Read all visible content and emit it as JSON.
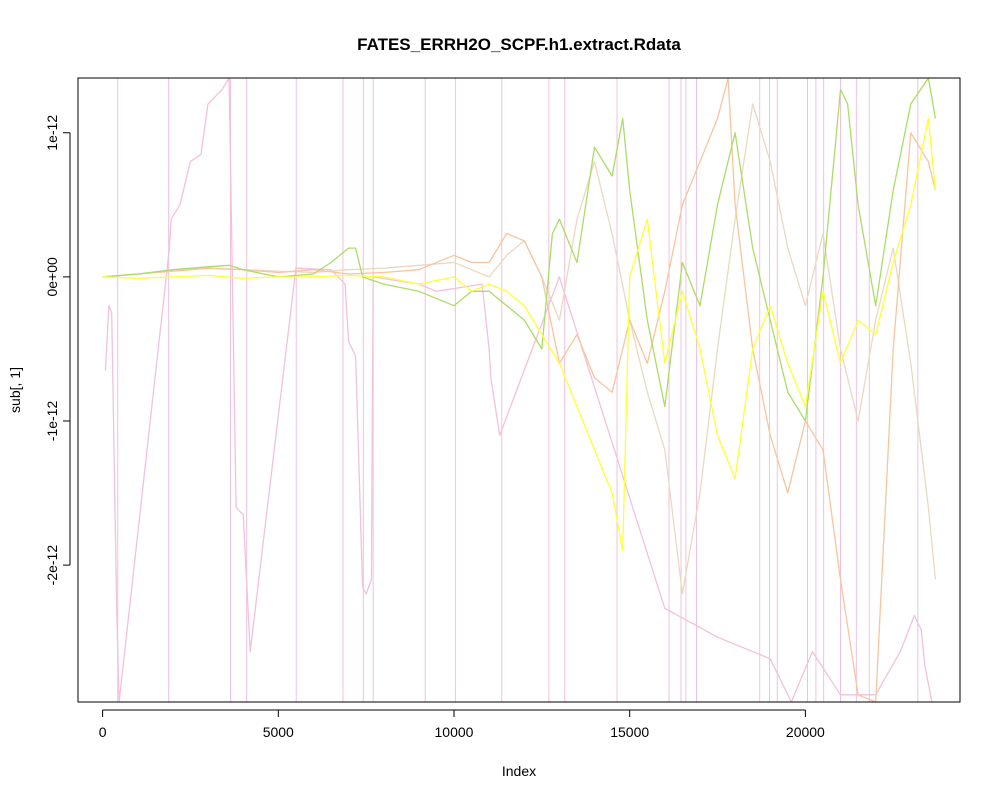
{
  "chart_data": {
    "type": "line",
    "title": "FATES_ERRH2O_SCPF.h1.extract.Rdata",
    "xlabel": "Index",
    "ylabel": "sub[, 1]",
    "xlim": [
      -700,
      24400
    ],
    "ylim": [
      -2.95e-12,
      1.38e-12
    ],
    "x_ticks": [
      0,
      5000,
      10000,
      15000,
      20000
    ],
    "x_tick_labels": [
      "0",
      "5000",
      "10000",
      "15000",
      "20000"
    ],
    "y_ticks": [
      1e-12,
      0,
      -1e-12,
      -2e-12
    ],
    "y_tick_labels": [
      "1e-12",
      "0e+00",
      "-1e-12",
      "-2e-12"
    ],
    "grid": false,
    "legend": "none",
    "series": [
      {
        "color": "#f2c1dc",
        "x": [
          80,
          180,
          260,
          400,
          470,
          1900,
          1950,
          2200,
          2500,
          2800,
          3000,
          3400,
          3600,
          3800,
          4000,
          4200,
          5500,
          6500,
          6900,
          7000,
          7200,
          7400,
          7500,
          7650,
          7700,
          9000,
          9500,
          10800,
          11000,
          11050,
          11300,
          13000,
          16000,
          17500,
          19000,
          19600,
          20200,
          21000,
          22000,
          22700,
          23100,
          23300,
          23400,
          23600
        ],
        "y": [
          -6.5e-13,
          -2e-13,
          -2.5e-13,
          -2.3e-12,
          -2.95e-12,
          2e-13,
          4e-13,
          5e-13,
          8e-13,
          8.5e-13,
          1.2e-12,
          1.3e-12,
          1.38e-12,
          -1.6e-12,
          -1.65e-12,
          -2.6e-12,
          6e-14,
          5e-14,
          -5e-14,
          -4.5e-13,
          -5.5e-13,
          -2.15e-12,
          -2.2e-12,
          -2.1e-12,
          0.0,
          -5e-14,
          -1e-13,
          -5e-14,
          -5e-13,
          -7e-13,
          -1.1e-12,
          0.0,
          -2.3e-12,
          -2.5e-12,
          -2.65e-12,
          -2.95e-12,
          -2.6e-12,
          -2.9e-12,
          -2.9e-12,
          -2.6e-12,
          -2.35e-12,
          -2.45e-12,
          -2.7e-12,
          -2.95e-12
        ]
      },
      {
        "color": "#ead9c0",
        "x": [
          0,
          1000,
          2000,
          3000,
          4000,
          5000,
          6000,
          7000,
          8000,
          9000,
          10000,
          10500,
          11000,
          11500,
          12000,
          12500,
          13000,
          13500,
          14000,
          14500,
          15000,
          15500,
          16000,
          16500,
          17000,
          17500,
          18000,
          18500,
          19000,
          19500,
          20000,
          20500,
          21000,
          21500,
          22000,
          22500,
          23000,
          23500,
          23700
        ],
        "y": [
          0.0,
          2e-14,
          4e-14,
          6e-14,
          5e-14,
          4e-14,
          3e-14,
          5e-14,
          6e-14,
          8e-14,
          1e-13,
          5e-14,
          0.0,
          1.5e-13,
          2.5e-13,
          0.0,
          -3e-13,
          4e-13,
          8e-13,
          3e-13,
          -3e-13,
          -8e-13,
          -1.2e-12,
          -2.2e-12,
          -1.5e-12,
          -5e-13,
          4e-13,
          1.2e-12,
          8e-13,
          2e-13,
          -2e-13,
          3e-13,
          -5e-13,
          -1e-12,
          -3e-13,
          2e-13,
          -6e-13,
          -1.6e-12,
          -2.1e-12
        ]
      },
      {
        "color": "#f9c49e",
        "x": [
          0,
          1000,
          2000,
          3000,
          4000,
          5000,
          6000,
          7000,
          8000,
          9000,
          10000,
          10500,
          11000,
          11500,
          12000,
          12500,
          13000,
          13500,
          14000,
          14500,
          15000,
          15500,
          16000,
          16500,
          17000,
          17500,
          17800,
          18000,
          18500,
          19000,
          19500,
          20000,
          20500,
          21000,
          21500,
          22000,
          22500,
          23000,
          23500,
          23700
        ],
        "y": [
          0.0,
          2e-14,
          4e-14,
          6e-14,
          5e-14,
          3e-14,
          5e-14,
          2e-14,
          3e-14,
          5e-14,
          1.5e-13,
          1e-13,
          1e-13,
          3e-13,
          2.5e-13,
          0.0,
          -6e-13,
          -4e-13,
          -7e-13,
          -8e-13,
          -3e-13,
          -6e-13,
          -1e-13,
          5e-13,
          8e-13,
          1.1e-12,
          1.38e-12,
          5e-13,
          -5e-13,
          -1.1e-12,
          -1.5e-12,
          -1e-12,
          -1.2e-12,
          -2.1e-12,
          -2.9e-12,
          -2.95e-12,
          -5e-13,
          1e-12,
          8e-13,
          6e-13
        ]
      },
      {
        "color": "#aadd66",
        "x": [
          0,
          1000,
          2000,
          3000,
          3600,
          4000,
          5000,
          6000,
          6500,
          7000,
          7200,
          7400,
          8000,
          9000,
          10000,
          10500,
          11000,
          11500,
          12000,
          12500,
          12800,
          13000,
          13500,
          14000,
          14500,
          14800,
          15000,
          15500,
          16000,
          16500,
          17000,
          17500,
          18000,
          18500,
          19000,
          19500,
          20000,
          20500,
          21000,
          21200,
          21500,
          22000,
          22500,
          23000,
          23500,
          23700
        ],
        "y": [
          0.0,
          2e-14,
          5e-14,
          7e-14,
          8e-14,
          5e-14,
          0.0,
          2e-14,
          1e-13,
          2e-13,
          2e-13,
          0.0,
          -5e-14,
          -1e-13,
          -2e-13,
          -1e-13,
          -1e-13,
          -2e-13,
          -3e-13,
          -5e-13,
          3e-13,
          4e-13,
          1e-13,
          9e-13,
          7e-13,
          1.1e-12,
          6e-13,
          -3e-13,
          -9e-13,
          1e-13,
          -2e-13,
          5e-13,
          1e-12,
          2e-13,
          -3e-13,
          -8e-13,
          -1e-12,
          0.0,
          1.3e-12,
          1.2e-12,
          5e-13,
          -2e-13,
          6e-13,
          1.2e-12,
          1.38e-12,
          1.1e-12
        ]
      },
      {
        "color": "#ffff33",
        "x": [
          0,
          1000,
          2000,
          3000,
          4000,
          5000,
          6000,
          7000,
          8000,
          9000,
          10000,
          10500,
          11000,
          11500,
          12000,
          12500,
          13000,
          13500,
          14000,
          14500,
          14800,
          15000,
          15500,
          16000,
          16500,
          17000,
          17500,
          18000,
          18500,
          19000,
          19500,
          20000,
          20500,
          21000,
          21500,
          22000,
          22500,
          23000,
          23500,
          23700
        ],
        "y": [
          0.0,
          -1e-14,
          0.0,
          1e-14,
          -1e-14,
          0.0,
          0.0,
          1e-14,
          0.0,
          -5e-14,
          0.0,
          -1e-13,
          -5e-14,
          -1e-13,
          -2e-13,
          -4e-13,
          -6e-13,
          -9e-13,
          -1.2e-12,
          -1.5e-12,
          -1.9e-12,
          0.0,
          4e-13,
          -6e-13,
          -1e-13,
          -5e-13,
          -1.1e-12,
          -1.4e-12,
          -5e-13,
          -2e-13,
          -6e-13,
          -9e-13,
          -1e-13,
          -6e-13,
          -3e-13,
          -4e-13,
          1e-13,
          5e-13,
          1.1e-12,
          6e-13
        ]
      }
    ],
    "vertical_lines": {
      "color": "#f2c1dc",
      "x": [
        430,
        1880,
        3640,
        4100,
        5510,
        6840,
        7420,
        7700,
        9180,
        10040,
        11360,
        12700,
        13150,
        14640,
        16120,
        16460,
        16600,
        16900,
        18700,
        18980,
        19200,
        20060,
        20300,
        20520,
        21000,
        21450,
        21820,
        23200
      ]
    }
  }
}
